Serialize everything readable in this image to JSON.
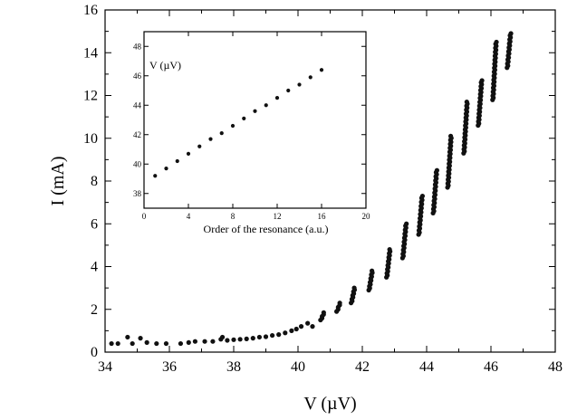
{
  "chart_data": [
    {
      "type": "scatter",
      "xlabel": "V (µV)",
      "ylabel": "I (mA)",
      "xlim": [
        34,
        48
      ],
      "ylim": [
        0,
        16
      ],
      "xticks": [
        34,
        36,
        38,
        40,
        42,
        44,
        46,
        48
      ],
      "yticks": [
        0,
        2,
        4,
        6,
        8,
        10,
        12,
        14,
        16
      ],
      "grid": false,
      "series": [
        {
          "clusters": [
            {
              "v": 34.2,
              "i": 0.4
            },
            {
              "v": 34.4,
              "i": 0.4
            },
            {
              "v": 34.7,
              "i": 0.7
            },
            {
              "v": 34.85,
              "i": 0.4
            },
            {
              "v": 35.1,
              "i": 0.65
            },
            {
              "v": 35.3,
              "i": 0.45
            },
            {
              "v": 35.6,
              "i": 0.4
            },
            {
              "v": 35.9,
              "i": 0.4
            },
            {
              "v": 36.35,
              "i": 0.4
            },
            {
              "v": 36.6,
              "i": 0.45
            },
            {
              "v": 36.8,
              "i": 0.5
            },
            {
              "v": 37.1,
              "i": 0.5
            },
            {
              "v": 37.35,
              "i": 0.5
            },
            {
              "v": 37.6,
              "i": 0.6
            },
            {
              "v": 37.65,
              "i": 0.7
            },
            {
              "v": 37.8,
              "i": 0.55
            },
            {
              "v": 38.0,
              "i": 0.58
            },
            {
              "v": 38.2,
              "i": 0.6
            },
            {
              "v": 38.4,
              "i": 0.62
            },
            {
              "v": 38.6,
              "i": 0.65
            },
            {
              "v": 38.8,
              "i": 0.7
            },
            {
              "v": 39.0,
              "i": 0.72
            },
            {
              "v": 39.2,
              "i": 0.78
            },
            {
              "v": 39.4,
              "i": 0.82
            },
            {
              "v": 39.6,
              "i": 0.9
            },
            {
              "v": 39.8,
              "i": 1.0
            },
            {
              "v": 39.95,
              "i": 1.08
            },
            {
              "v": 40.1,
              "i": 1.2
            },
            {
              "v": 40.3,
              "i": 1.35
            },
            {
              "v": 40.45,
              "i": 1.2
            },
            {
              "v": 40.7,
              "i": 1.5,
              "i2": 1.85
            },
            {
              "v": 41.2,
              "i": 1.9,
              "i2": 2.3
            },
            {
              "v": 41.65,
              "i": 2.3,
              "i2": 3.0
            },
            {
              "v": 42.2,
              "i": 2.9,
              "i2": 3.8
            },
            {
              "v": 42.75,
              "i": 3.5,
              "i2": 4.8
            },
            {
              "v": 43.25,
              "i": 4.4,
              "i2": 6.0
            },
            {
              "v": 43.75,
              "i": 5.5,
              "i2": 7.3
            },
            {
              "v": 44.2,
              "i": 6.5,
              "i2": 8.5
            },
            {
              "v": 44.65,
              "i": 7.7,
              "i2": 10.1
            },
            {
              "v": 45.15,
              "i": 9.3,
              "i2": 11.7
            },
            {
              "v": 45.6,
              "i": 10.6,
              "i2": 12.7
            },
            {
              "v": 46.05,
              "i": 11.8,
              "i2": 14.5
            },
            {
              "v": 46.5,
              "i": 13.3,
              "i2": 14.9
            }
          ]
        }
      ]
    },
    {
      "type": "scatter",
      "title": "V (µV)",
      "xlabel": "Order of the resonance (a.u.)",
      "ylabel": "",
      "xlim": [
        0,
        20
      ],
      "ylim": [
        37,
        49
      ],
      "xticks": [
        0,
        4,
        8,
        12,
        16,
        20
      ],
      "yticks": [
        38,
        40,
        42,
        44,
        46,
        48
      ],
      "grid": false,
      "series": [
        {
          "x": [
            1,
            2,
            3,
            4,
            5,
            6,
            7,
            8,
            9,
            10,
            11,
            12,
            13,
            14,
            15,
            16
          ],
          "y": [
            39.2,
            39.7,
            40.2,
            40.7,
            41.2,
            41.7,
            42.1,
            42.6,
            43.1,
            43.6,
            44.0,
            44.5,
            45.0,
            45.4,
            45.9,
            46.4
          ]
        }
      ]
    }
  ]
}
